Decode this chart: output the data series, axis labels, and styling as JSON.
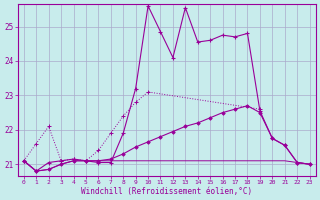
{
  "xlabel": "Windchill (Refroidissement éolien,°C)",
  "background_color": "#c8ecec",
  "grid_color": "#aaaacc",
  "line_color": "#990099",
  "xlim": [
    -0.5,
    23.5
  ],
  "ylim": [
    20.65,
    25.65
  ],
  "yticks": [
    21,
    22,
    23,
    24,
    25
  ],
  "xticks": [
    0,
    1,
    2,
    3,
    4,
    5,
    6,
    7,
    8,
    9,
    10,
    11,
    12,
    13,
    14,
    15,
    16,
    17,
    18,
    19,
    20,
    21,
    22,
    23
  ],
  "series": {
    "spiky_x": [
      0,
      1,
      2,
      3,
      4,
      5,
      6,
      7,
      8,
      9,
      10,
      11,
      12,
      13,
      14,
      15,
      16,
      17,
      18,
      19,
      20,
      21,
      22,
      23
    ],
    "spiky_y": [
      21.1,
      20.8,
      21.05,
      21.1,
      21.15,
      21.1,
      21.05,
      21.05,
      21.9,
      23.2,
      25.6,
      24.85,
      24.1,
      25.55,
      24.55,
      24.6,
      24.75,
      24.7,
      24.8,
      22.55,
      21.75,
      21.55,
      21.05,
      21.0
    ],
    "diag_x": [
      0,
      1,
      2,
      3,
      4,
      5,
      6,
      7,
      8,
      9,
      10,
      19
    ],
    "diag_y": [
      21.1,
      21.6,
      22.1,
      21.1,
      21.15,
      21.1,
      21.4,
      21.9,
      22.4,
      22.8,
      23.1,
      22.6
    ],
    "smooth_x": [
      0,
      1,
      2,
      3,
      4,
      5,
      6,
      7,
      8,
      9,
      10,
      11,
      12,
      13,
      14,
      15,
      16,
      17,
      18,
      19,
      20,
      21,
      22,
      23
    ],
    "smooth_y": [
      21.1,
      20.8,
      20.85,
      21.0,
      21.1,
      21.1,
      21.1,
      21.15,
      21.3,
      21.5,
      21.65,
      21.8,
      21.95,
      22.1,
      22.2,
      22.35,
      22.5,
      22.6,
      22.7,
      22.5,
      21.75,
      21.55,
      21.05,
      21.0
    ],
    "flat_x": [
      0,
      1,
      2,
      3,
      4,
      5,
      6,
      7,
      8,
      9,
      10,
      11,
      12,
      13,
      14,
      15,
      16,
      17,
      18,
      19,
      20,
      21,
      22,
      23
    ],
    "flat_y": [
      21.1,
      20.8,
      20.85,
      21.0,
      21.1,
      21.1,
      21.1,
      21.1,
      21.1,
      21.1,
      21.1,
      21.1,
      21.1,
      21.1,
      21.1,
      21.1,
      21.1,
      21.1,
      21.1,
      21.1,
      21.1,
      21.1,
      21.05,
      21.0
    ]
  }
}
